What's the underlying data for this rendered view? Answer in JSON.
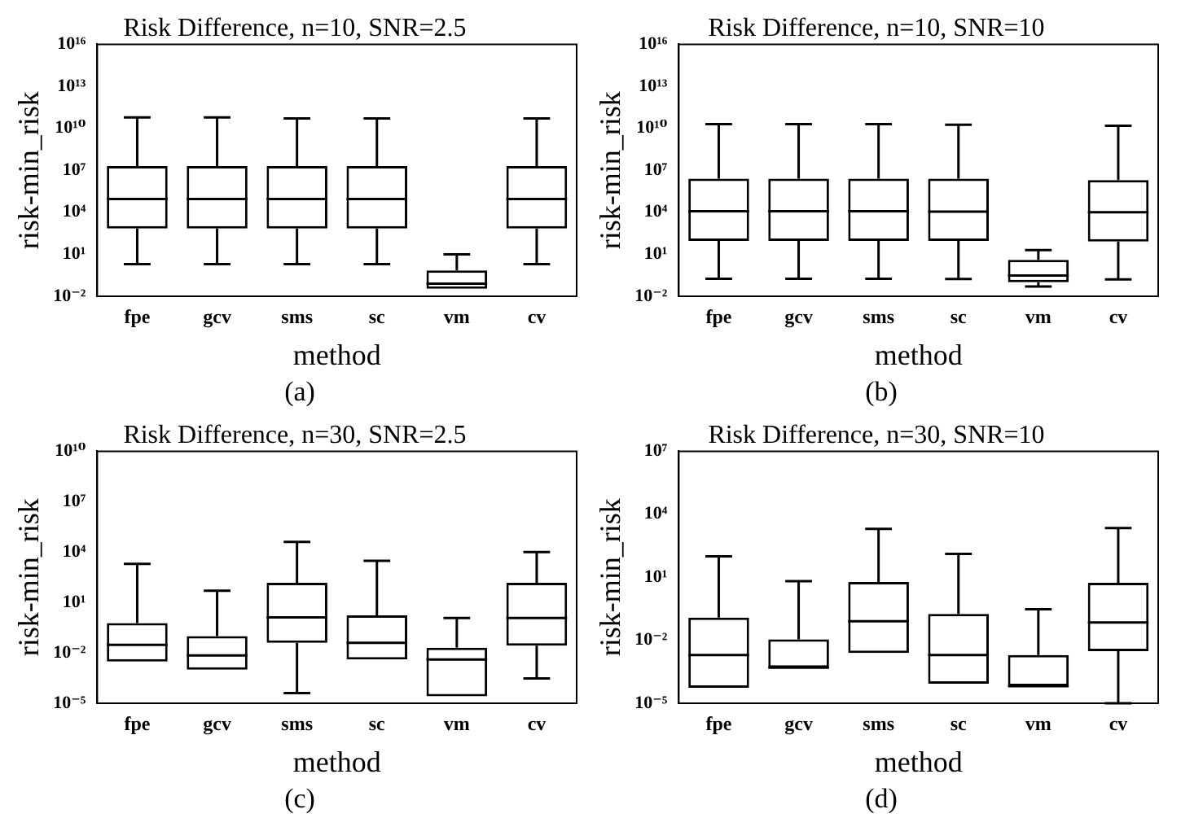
{
  "chart_data": [
    {
      "type": "box",
      "title": "Risk Difference, n=10, SNR=2.5",
      "xlabel": "method",
      "ylabel": "risk-min_risk",
      "categories": [
        "fpe",
        "gcv",
        "sms",
        "sc",
        "vm",
        "cv"
      ],
      "log": true,
      "grid": false,
      "legend": false,
      "ylim": [
        0.01,
        1e+16
      ],
      "yticks": [
        {
          "value": 0.01,
          "label": "10⁻²"
        },
        {
          "value": 10,
          "label": "10¹"
        },
        {
          "value": 10000.0,
          "label": "10⁴"
        },
        {
          "value": 10000000.0,
          "label": "10⁷"
        },
        {
          "value": 10000000000.0,
          "label": "10¹⁰"
        },
        {
          "value": 10000000000000.0,
          "label": "10¹³"
        },
        {
          "value": 1e+16,
          "label": "10¹⁶"
        }
      ],
      "boxes": [
        {
          "low": 2,
          "q1": 700,
          "median": 90000,
          "q3": 20000000,
          "high": 60000000000
        },
        {
          "low": 2,
          "q1": 700,
          "median": 90000,
          "q3": 20000000,
          "high": 60000000000
        },
        {
          "low": 2,
          "q1": 700,
          "median": 90000,
          "q3": 20000000,
          "high": 50000000000
        },
        {
          "low": 2,
          "q1": 700,
          "median": 90000,
          "q3": 20000000,
          "high": 50000000000
        },
        {
          "low": 0.035,
          "q1": 0.035,
          "median": 0.08,
          "q3": 0.7,
          "high": 10
        },
        {
          "low": 2,
          "q1": 700,
          "median": 90000,
          "q3": 20000000,
          "high": 50000000000
        }
      ],
      "annotations": [
        "(a)"
      ]
    },
    {
      "type": "box",
      "title": "Risk Difference, n=10, SNR=10",
      "xlabel": "method",
      "ylabel": "risk-min_risk",
      "categories": [
        "fpe",
        "gcv",
        "sms",
        "sc",
        "vm",
        "cv"
      ],
      "log": true,
      "grid": false,
      "legend": false,
      "ylim": [
        0.01,
        1e+16
      ],
      "yticks": [
        {
          "value": 0.01,
          "label": "10⁻²"
        },
        {
          "value": 10,
          "label": "10¹"
        },
        {
          "value": 10000.0,
          "label": "10⁴"
        },
        {
          "value": 10000000.0,
          "label": "10⁷"
        },
        {
          "value": 10000000000.0,
          "label": "10¹⁰"
        },
        {
          "value": 10000000000000.0,
          "label": "10¹³"
        },
        {
          "value": 1e+16,
          "label": "10¹⁶"
        }
      ],
      "boxes": [
        {
          "low": 0.18,
          "q1": 90,
          "median": 12000,
          "q3": 2500000,
          "high": 20000000000
        },
        {
          "low": 0.18,
          "q1": 90,
          "median": 12000,
          "q3": 2500000,
          "high": 20000000000
        },
        {
          "low": 0.18,
          "q1": 90,
          "median": 12000,
          "q3": 2500000,
          "high": 20000000000
        },
        {
          "low": 0.17,
          "q1": 90,
          "median": 11000,
          "q3": 2500000,
          "high": 18000000000
        },
        {
          "low": 0.05,
          "q1": 0.1,
          "median": 0.3,
          "q3": 4,
          "high": 20
        },
        {
          "low": 0.16,
          "q1": 80,
          "median": 10000,
          "q3": 2000000,
          "high": 15000000000
        }
      ],
      "annotations": [
        "(b)"
      ]
    },
    {
      "type": "box",
      "title": "Risk Difference, n=30, SNR=2.5",
      "xlabel": "method",
      "ylabel": "risk-min_risk",
      "categories": [
        "fpe",
        "gcv",
        "sms",
        "sc",
        "vm",
        "cv"
      ],
      "log": true,
      "grid": false,
      "legend": false,
      "ylim": [
        1e-05,
        10000000000.0
      ],
      "yticks": [
        {
          "value": 1e-05,
          "label": "10⁻⁵"
        },
        {
          "value": 0.01,
          "label": "10⁻²"
        },
        {
          "value": 10,
          "label": "10¹"
        },
        {
          "value": 10000.0,
          "label": "10⁴"
        },
        {
          "value": 10000000.0,
          "label": "10⁷"
        },
        {
          "value": 10000000000.0,
          "label": "10¹⁰"
        }
      ],
      "boxes": [
        {
          "low": 0.003,
          "q1": 0.003,
          "median": 0.03,
          "q3": 0.6,
          "high": 2000
        },
        {
          "low": 0.001,
          "q1": 0.001,
          "median": 0.007,
          "q3": 0.1,
          "high": 50
        },
        {
          "low": 4e-05,
          "q1": 0.04,
          "median": 1.3,
          "q3": 150,
          "high": 40000
        },
        {
          "low": 0.004,
          "q1": 0.004,
          "median": 0.04,
          "q3": 1.7,
          "high": 3000
        },
        {
          "low": 2.6e-05,
          "q1": 2.6e-05,
          "median": 0.004,
          "q3": 0.02,
          "high": 1.2
        },
        {
          "low": 0.0003,
          "q1": 0.027,
          "median": 1.2,
          "q3": 150,
          "high": 10000
        }
      ],
      "annotations": [
        "(c)"
      ]
    },
    {
      "type": "box",
      "title": "Risk Difference, n=30, SNR=10",
      "xlabel": "method",
      "ylabel": "risk-min_risk",
      "categories": [
        "fpe",
        "gcv",
        "sms",
        "sc",
        "vm",
        "cv"
      ],
      "log": true,
      "grid": false,
      "legend": false,
      "ylim": [
        1e-05,
        10000000.0
      ],
      "yticks": [
        {
          "value": 1e-05,
          "label": "10⁻⁵"
        },
        {
          "value": 0.01,
          "label": "10⁻²"
        },
        {
          "value": 10,
          "label": "10¹"
        },
        {
          "value": 10000.0,
          "label": "10⁴"
        },
        {
          "value": 10000000.0,
          "label": "10⁷"
        }
      ],
      "boxes": [
        {
          "low": 5.5e-05,
          "q1": 5.5e-05,
          "median": 0.002,
          "q3": 0.12,
          "high": 100
        },
        {
          "low": 0.0005,
          "q1": 0.0005,
          "median": 0.0005,
          "q3": 0.011,
          "high": 6.5
        },
        {
          "low": 0.0025,
          "q1": 0.0025,
          "median": 0.08,
          "q3": 6,
          "high": 2000
        },
        {
          "low": 8.5e-05,
          "q1": 8.5e-05,
          "median": 0.002,
          "q3": 0.18,
          "high": 130
        },
        {
          "low": 6.5e-05,
          "q1": 6.5e-05,
          "median": 6.5e-05,
          "q3": 0.002,
          "high": 0.3
        },
        {
          "low": 1e-05,
          "q1": 0.003,
          "median": 0.07,
          "q3": 5.5,
          "high": 2200
        }
      ],
      "annotations": [
        "(d)"
      ]
    }
  ]
}
